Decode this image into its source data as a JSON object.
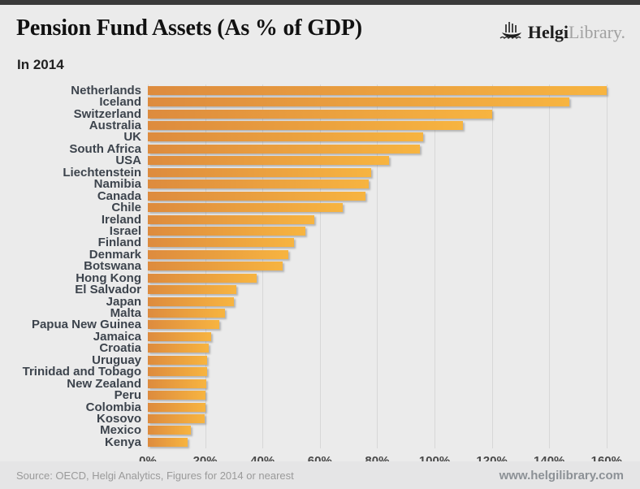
{
  "header": {
    "title": "Pension Fund Assets (As % of GDP)",
    "subtitle": "In 2014",
    "logo": {
      "bold": "Helgi",
      "light": "Library."
    }
  },
  "footer": {
    "source": "Source: OECD, Helgi Analytics, Figures for 2014 or nearest",
    "website": "www.helgilibrary.com"
  },
  "colors": {
    "background": "#ebebeb",
    "top_strip": "#3a3a3a",
    "bar_gradient_left": "#dd8b3e",
    "bar_gradient_right": "#f7b440",
    "gridline": "#d7d7d7",
    "country_label": "#3d444d",
    "axis_label": "#494949",
    "footer_text": "#9a9a9a"
  },
  "chart_data": {
    "type": "bar",
    "orientation": "horizontal",
    "title": "Pension Fund Assets (As % of GDP)",
    "subtitle": "In 2014",
    "unit": "% of GDP",
    "xlim": [
      0,
      166
    ],
    "grid": "vertical",
    "legend": "none",
    "tick_values": [
      0,
      20,
      40,
      60,
      80,
      100,
      120,
      140,
      160
    ],
    "tick_labels": [
      "0%",
      "20%",
      "40%",
      "60%",
      "80%",
      "100%",
      "120%",
      "140%",
      "160%"
    ],
    "categories": [
      "Netherlands",
      "Iceland",
      "Switzerland",
      "Australia",
      "UK",
      "South Africa",
      "USA",
      "Liechtenstein",
      "Namibia",
      "Canada",
      "Chile",
      "Ireland",
      "Israel",
      "Finland",
      "Denmark",
      "Botswana",
      "Hong Kong",
      "El Salvador",
      "Japan",
      "Malta",
      "Papua New Guinea",
      "Jamaica",
      "Croatia",
      "Uruguay",
      "Trinidad and Tobago",
      "New Zealand",
      "Peru",
      "Colombia",
      "Kosovo",
      "Mexico",
      "Kenya"
    ],
    "values": [
      160,
      147,
      120,
      110,
      96,
      95,
      84,
      78,
      77,
      76,
      68,
      58,
      55,
      51,
      49,
      47,
      38,
      31,
      30,
      27,
      25,
      22,
      21.3,
      20.8,
      20.6,
      20.3,
      20.1,
      20,
      19.9,
      15,
      14
    ]
  }
}
